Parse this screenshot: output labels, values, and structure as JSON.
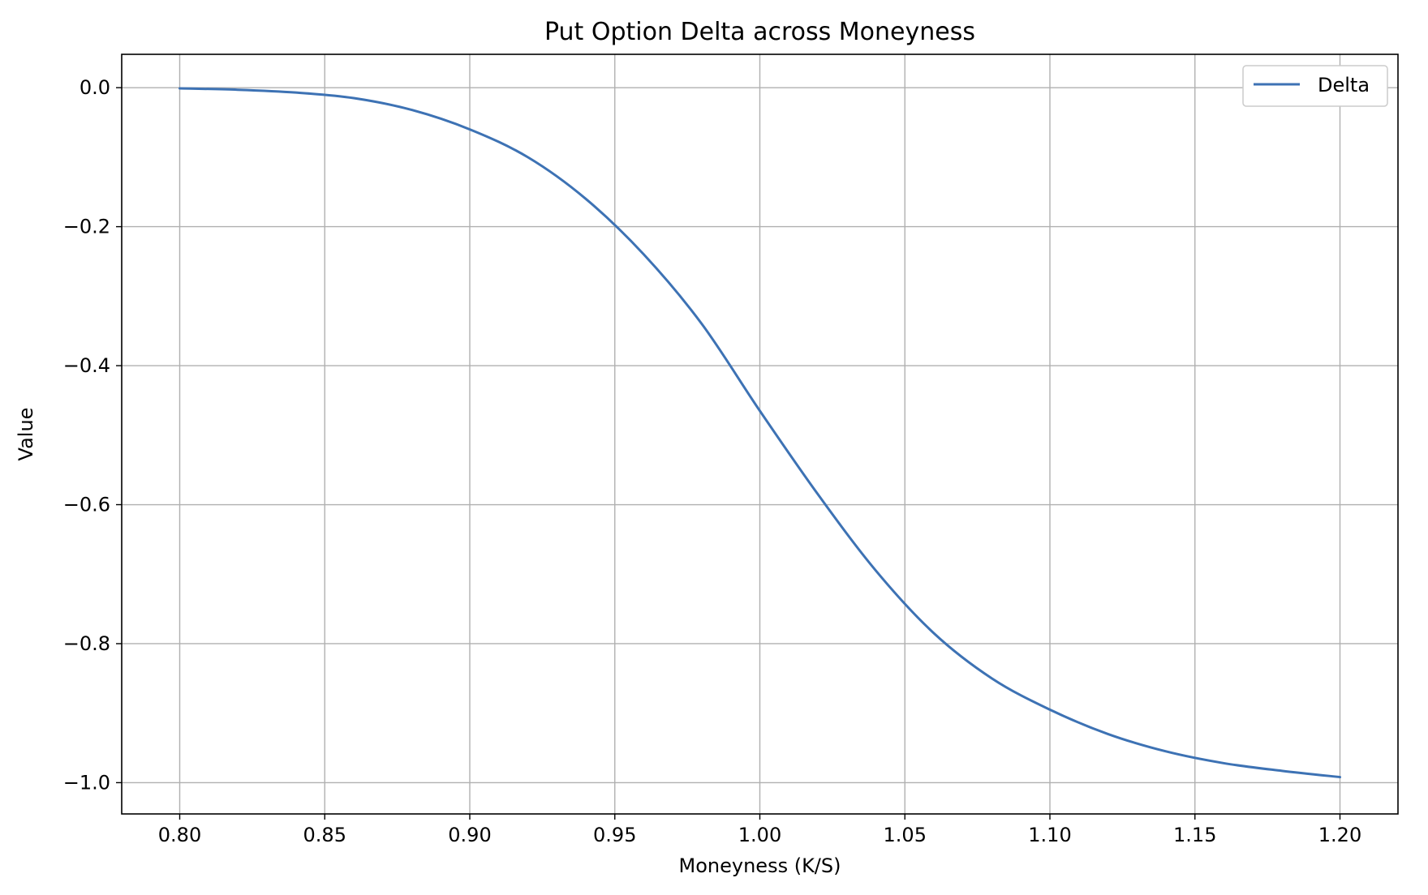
{
  "chart_data": {
    "type": "line",
    "title": "Put Option Delta across Moneyness",
    "xlabel": "Moneyness (K/S)",
    "ylabel": "Value",
    "xlim": [
      0.78,
      1.22
    ],
    "ylim": [
      -1.045,
      0.048
    ],
    "xticks": [
      0.8,
      0.85,
      0.9,
      0.95,
      1.0,
      1.05,
      1.1,
      1.15,
      1.2
    ],
    "xtick_labels": [
      "0.80",
      "0.85",
      "0.90",
      "0.95",
      "1.00",
      "1.05",
      "1.10",
      "1.15",
      "1.20"
    ],
    "yticks": [
      0.0,
      -0.2,
      -0.4,
      -0.6,
      -0.8,
      -1.0
    ],
    "ytick_labels": [
      "0.0",
      "−0.2",
      "−0.4",
      "−0.6",
      "−0.8",
      "−1.0"
    ],
    "grid": true,
    "legend_position": "top-right",
    "series": [
      {
        "name": "Delta",
        "color": "#3d72b4",
        "x": [
          0.8,
          0.82,
          0.84,
          0.86,
          0.88,
          0.9,
          0.92,
          0.94,
          0.96,
          0.98,
          1.0,
          1.02,
          1.04,
          1.06,
          1.08,
          1.1,
          1.12,
          1.14,
          1.16,
          1.18,
          1.2
        ],
        "y": [
          -0.001,
          -0.003,
          -0.007,
          -0.015,
          -0.032,
          -0.06,
          -0.1,
          -0.16,
          -0.24,
          -0.34,
          -0.465,
          -0.585,
          -0.695,
          -0.785,
          -0.85,
          -0.895,
          -0.93,
          -0.955,
          -0.972,
          -0.983,
          -0.992
        ]
      }
    ]
  }
}
